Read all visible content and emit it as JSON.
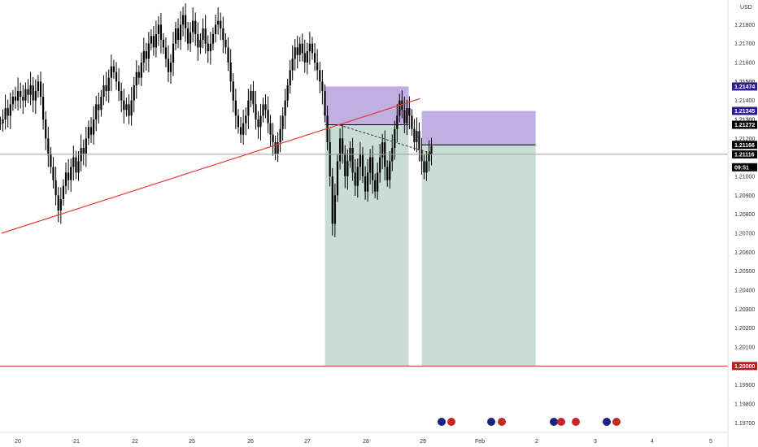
{
  "chart_data": {
    "type": "candlestick",
    "currency_label": "USD",
    "y_range": [
      1.1965,
      1.2193
    ],
    "y_ticks": [
      "1.21800",
      "1.21700",
      "1.21600",
      "1.21500",
      "1.21400",
      "1.21300",
      "1.21200",
      "1.21000",
      "1.20900",
      "1.20800",
      "1.20700",
      "1.20600",
      "1.20500",
      "1.20400",
      "1.20300",
      "1.20200",
      "1.20100",
      "1.19900",
      "1.19800",
      "1.19700"
    ],
    "x_ticks": [
      {
        "label": "20",
        "day": 0
      },
      {
        "label": "21",
        "day": 1
      },
      {
        "label": "22",
        "day": 2
      },
      {
        "label": "25",
        "day": 3
      },
      {
        "label": "26",
        "day": 4
      },
      {
        "label": "27",
        "day": 5
      },
      {
        "label": "28",
        "day": 6
      },
      {
        "label": "29",
        "day": 7
      },
      {
        "label": "Feb",
        "day": 8
      },
      {
        "label": "2",
        "day": 9
      },
      {
        "label": "3",
        "day": 10
      },
      {
        "label": "4",
        "day": 11
      },
      {
        "label": "5",
        "day": 12
      }
    ],
    "price_tags": [
      {
        "label": "1.21474",
        "value": 1.21474,
        "color": "#311b92"
      },
      {
        "label": "1.21345",
        "value": 1.21345,
        "color": "#311b92"
      },
      {
        "label": "1.21272",
        "value": 1.21272,
        "color": "#000000"
      },
      {
        "label": "1.21166",
        "value": 1.21166,
        "color": "#000000"
      },
      {
        "label": "1.21116",
        "value": 1.21116,
        "color": "#000000"
      },
      {
        "label": "09:51",
        "value": 1.21048,
        "color": "#000000"
      },
      {
        "label": "1.20000",
        "value": 1.2,
        "color": "#b71c1c"
      }
    ],
    "hidden_partial_ticks": [
      "1.21500",
      "1.21300"
    ],
    "horizontal_lines": [
      {
        "value": 1.2,
        "color": "#d32f2f"
      },
      {
        "value": 1.21116,
        "color": "#9e9e9e"
      }
    ],
    "trendline": {
      "from": {
        "day": -0.28,
        "price": 1.207
      },
      "to": {
        "day": 6.95,
        "price": 1.2141
      },
      "color": "#e53935"
    },
    "short_positions": [
      {
        "day_start": 5.3,
        "day_end": 6.75,
        "entry": 1.21272,
        "stop": 1.21474,
        "target": 1.2
      },
      {
        "day_start": 6.98,
        "day_end": 8.98,
        "entry": 1.21166,
        "stop": 1.21345,
        "target": 1.2
      }
    ],
    "dashed_projection": {
      "from": {
        "day": 5.55,
        "price": 1.2127
      },
      "to": {
        "day": 7.15,
        "price": 1.2112
      }
    },
    "candles": [
      1.2128,
      1.213,
      1.2136,
      1.2132,
      1.2138,
      1.2142,
      1.214,
      1.2145,
      1.2142,
      1.214,
      1.2146,
      1.2143,
      1.2148,
      1.214,
      1.2145,
      1.215,
      1.2142,
      1.213,
      1.212,
      1.2112,
      1.2105,
      1.2098,
      1.209,
      1.2082,
      1.2088,
      1.2095,
      1.2102,
      1.2098,
      1.2105,
      1.211,
      1.2102,
      1.2108,
      1.2115,
      1.2112,
      1.212,
      1.2126,
      1.2122,
      1.213,
      1.2138,
      1.2135,
      1.2142,
      1.2148,
      1.2145,
      1.2152,
      1.2158,
      1.2155,
      1.215,
      1.2145,
      1.214,
      1.2135,
      1.2138,
      1.2132,
      1.214,
      1.2148,
      1.2155,
      1.2152,
      1.216,
      1.2166,
      1.2162,
      1.217,
      1.2174,
      1.2168,
      1.2175,
      1.218,
      1.2172,
      1.2168,
      1.2162,
      1.2155,
      1.216,
      1.217,
      1.2178,
      1.2172,
      1.218,
      1.2185,
      1.2178,
      1.217,
      1.2176,
      1.2182,
      1.2175,
      1.2168,
      1.2172,
      1.2178,
      1.217,
      1.2166,
      1.217,
      1.2175,
      1.218,
      1.2182,
      1.2178,
      1.2172,
      1.2168,
      1.216,
      1.215,
      1.214,
      1.2132,
      1.2126,
      1.2122,
      1.2128,
      1.2132,
      1.214,
      1.2145,
      1.2138,
      1.213,
      1.2126,
      1.2132,
      1.2138,
      1.2135,
      1.2128,
      1.2122,
      1.2118,
      1.2112,
      1.2118,
      1.2125,
      1.2132,
      1.214,
      1.2148,
      1.2156,
      1.2162,
      1.2168,
      1.2164,
      1.217,
      1.2165,
      1.216,
      1.2166,
      1.217,
      1.2165,
      1.216,
      1.2156,
      1.215,
      1.2145,
      1.2132,
      1.2118,
      1.21,
      1.2075,
      1.209,
      1.2108,
      1.212,
      1.2112,
      1.21,
      1.2108,
      1.2115,
      1.2102,
      1.2095,
      1.2105,
      1.2112,
      1.21,
      1.2092,
      1.2102,
      1.211,
      1.2098,
      1.2092,
      1.2102,
      1.211,
      1.2118,
      1.2105,
      1.2098,
      1.2108,
      1.2115,
      1.2125,
      1.2132,
      1.214,
      1.2135,
      1.2128,
      1.2136,
      1.2132,
      1.2125,
      1.2118,
      1.2124,
      1.2114,
      1.2108,
      1.2102,
      1.2108,
      1.2112,
      1.2116
    ]
  }
}
